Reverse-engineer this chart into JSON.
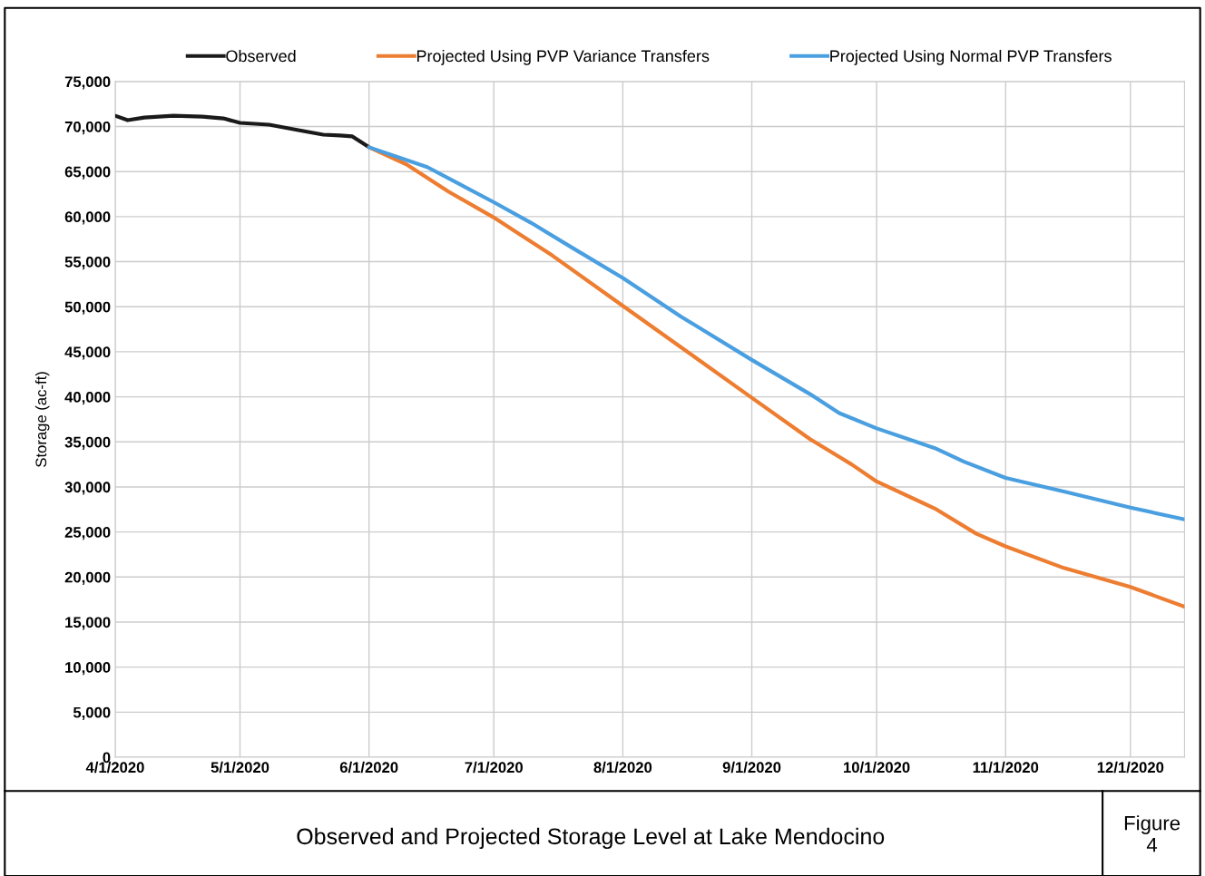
{
  "chart_data": {
    "type": "line",
    "title": "Observed and Projected Storage Level at Lake Mendocino",
    "ylabel": "Storage (ac-ft)",
    "annotations": [
      "Figure\n4"
    ],
    "series": [
      {
        "name": "Observed",
        "color": "#1a1a1a",
        "x": [
          "2020-04-01",
          "2020-04-04",
          "2020-04-08",
          "2020-04-15",
          "2020-04-22",
          "2020-04-27",
          "2020-05-01",
          "2020-05-08",
          "2020-05-15",
          "2020-05-21",
          "2020-05-25",
          "2020-05-28",
          "2020-06-01"
        ],
        "values": [
          71200,
          70700,
          71000,
          71200,
          71100,
          70900,
          70400,
          70200,
          69600,
          69100,
          69000,
          68900,
          67700
        ]
      },
      {
        "name": "Projected Using PVP Variance Transfers",
        "color": "#ed7d31",
        "x": [
          "2020-06-01",
          "2020-06-10",
          "2020-06-20",
          "2020-07-01",
          "2020-07-15",
          "2020-08-01",
          "2020-08-15",
          "2020-09-01",
          "2020-09-15",
          "2020-09-25",
          "2020-10-01",
          "2020-10-15",
          "2020-10-25",
          "2020-11-01",
          "2020-11-15",
          "2020-12-01",
          "2020-12-14"
        ],
        "values": [
          67700,
          65800,
          62800,
          59900,
          55700,
          50100,
          45500,
          39900,
          35300,
          32500,
          30600,
          27600,
          24800,
          23400,
          21000,
          18900,
          16700
        ]
      },
      {
        "name": "Projected Using Normal PVP Transfers",
        "color": "#4a9fe0",
        "x": [
          "2020-06-01",
          "2020-06-15",
          "2020-07-01",
          "2020-07-10",
          "2020-07-20",
          "2020-08-01",
          "2020-08-15",
          "2020-09-01",
          "2020-09-15",
          "2020-09-22",
          "2020-10-01",
          "2020-10-15",
          "2020-10-22",
          "2020-11-01",
          "2020-11-15",
          "2020-12-01",
          "2020-12-14"
        ],
        "values": [
          67700,
          65500,
          61600,
          59300,
          56500,
          53200,
          48900,
          44100,
          40300,
          38200,
          36500,
          34300,
          32800,
          31000,
          29500,
          27700,
          26400
        ]
      }
    ],
    "xlim": [
      "2020-04-01",
      "2020-12-14"
    ],
    "xticks": [
      {
        "value": "2020-04-01",
        "label": "4/1/2020"
      },
      {
        "value": "2020-05-01",
        "label": "5/1/2020"
      },
      {
        "value": "2020-06-01",
        "label": "6/1/2020"
      },
      {
        "value": "2020-07-01",
        "label": "7/1/2020"
      },
      {
        "value": "2020-08-01",
        "label": "8/1/2020"
      },
      {
        "value": "2020-09-01",
        "label": "9/1/2020"
      },
      {
        "value": "2020-10-01",
        "label": "10/1/2020"
      },
      {
        "value": "2020-11-01",
        "label": "11/1/2020"
      },
      {
        "value": "2020-12-01",
        "label": "12/1/2020"
      }
    ],
    "ylim": [
      0,
      75000
    ],
    "yticks": [
      {
        "value": 0,
        "label": "0"
      },
      {
        "value": 5000,
        "label": "5,000"
      },
      {
        "value": 10000,
        "label": "10,000"
      },
      {
        "value": 15000,
        "label": "15,000"
      },
      {
        "value": 20000,
        "label": "20,000"
      },
      {
        "value": 25000,
        "label": "25,000"
      },
      {
        "value": 30000,
        "label": "30,000"
      },
      {
        "value": 35000,
        "label": "35,000"
      },
      {
        "value": 40000,
        "label": "40,000"
      },
      {
        "value": 45000,
        "label": "45,000"
      },
      {
        "value": 50000,
        "label": "50,000"
      },
      {
        "value": 55000,
        "label": "55,000"
      },
      {
        "value": 60000,
        "label": "60,000"
      },
      {
        "value": 65000,
        "label": "65,000"
      },
      {
        "value": 70000,
        "label": "70,000"
      },
      {
        "value": 75000,
        "label": "75,000"
      }
    ],
    "grid": true,
    "legend": "top",
    "marker": "none",
    "line_style": "solid"
  }
}
